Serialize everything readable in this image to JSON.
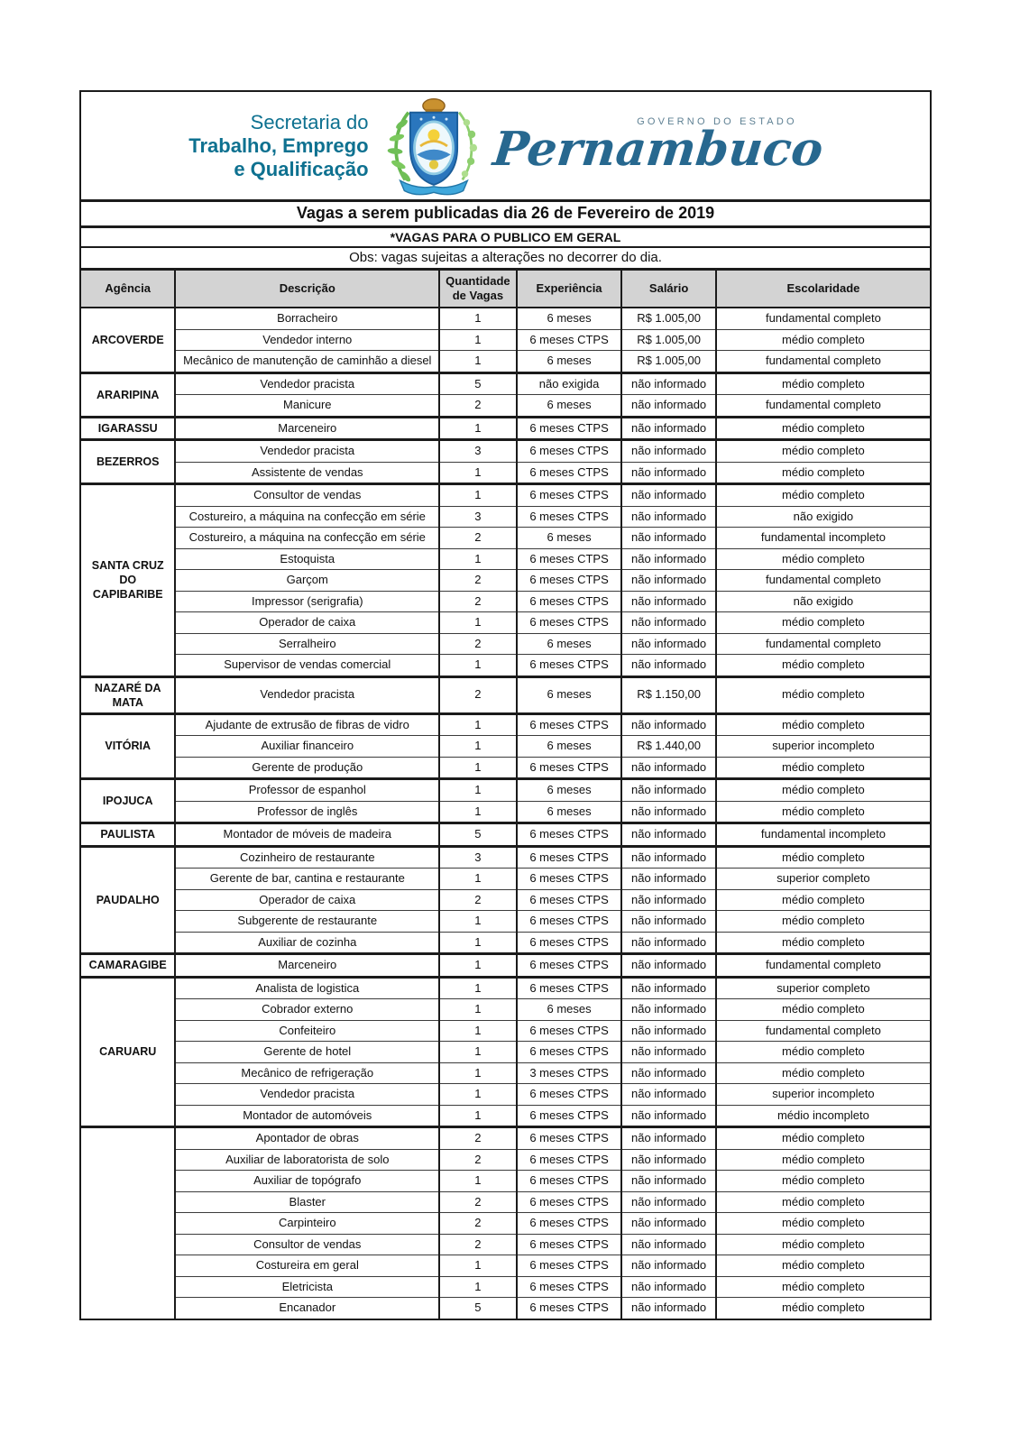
{
  "page": {
    "logo": {
      "secretaria_line1": "Secretaria do",
      "secretaria_line2": "Trabalho, Emprego",
      "secretaria_line3": "e Qualificação",
      "governo_label": "GOVERNO DO ESTADO",
      "estado_name": "Pernambuco",
      "crest_icon": "pernambuco-coat-of-arms"
    },
    "title": "Vagas a serem publicadas dia 26 de Fevereiro de 2019",
    "subtitle": "*VAGAS PARA O PUBLICO EM GERAL",
    "note": "Obs: vagas sujeitas a alterações no decorrer do dia.",
    "colors": {
      "secretaria_teal": "#0e7190",
      "pernambuco_blue": "#27688f",
      "governo_gray_blue": "#5e8093",
      "table_header_bg": "#d3d3d3",
      "border_black": "#1b1b1b"
    }
  },
  "table": {
    "columns": [
      "Agência",
      "Descrição",
      "Quantidade de Vagas",
      "Experiência",
      "Salário",
      "Escolaridade"
    ],
    "groups": [
      {
        "agency": "ARCOVERDE",
        "rows": [
          {
            "descricao": "Borracheiro",
            "vagas": "1",
            "experiencia": "6 meses",
            "salario": "R$ 1.005,00",
            "escolaridade": "fundamental completo"
          },
          {
            "descricao": "Vendedor interno",
            "vagas": "1",
            "experiencia": "6 meses CTPS",
            "salario": "R$ 1.005,00",
            "escolaridade": "médio completo"
          },
          {
            "descricao": "Mecânico de manutenção de caminhão a diesel",
            "vagas": "1",
            "experiencia": "6 meses",
            "salario": "R$ 1.005,00",
            "escolaridade": "fundamental completo"
          }
        ]
      },
      {
        "agency": "ARARIPINA",
        "rows": [
          {
            "descricao": "Vendedor pracista",
            "vagas": "5",
            "experiencia": "não exigida",
            "salario": "não informado",
            "escolaridade": "médio completo"
          },
          {
            "descricao": "Manicure",
            "vagas": "2",
            "experiencia": "6 meses",
            "salario": "não informado",
            "escolaridade": "fundamental completo"
          }
        ]
      },
      {
        "agency": "IGARASSU",
        "rows": [
          {
            "descricao": "Marceneiro",
            "vagas": "1",
            "experiencia": "6 meses CTPS",
            "salario": "não informado",
            "escolaridade": "médio completo"
          }
        ]
      },
      {
        "agency": "BEZERROS",
        "rows": [
          {
            "descricao": "Vendedor pracista",
            "vagas": "3",
            "experiencia": "6 meses CTPS",
            "salario": "não informado",
            "escolaridade": "médio completo"
          },
          {
            "descricao": "Assistente de vendas",
            "vagas": "1",
            "experiencia": "6 meses CTPS",
            "salario": "não informado",
            "escolaridade": "médio completo"
          }
        ]
      },
      {
        "agency": "SANTA CRUZ DO CAPIBARIBE",
        "rows": [
          {
            "descricao": "Consultor de vendas",
            "vagas": "1",
            "experiencia": "6 meses CTPS",
            "salario": "não informado",
            "escolaridade": "médio completo"
          },
          {
            "descricao": "Costureiro, a máquina na confecção em série",
            "vagas": "3",
            "experiencia": "6 meses CTPS",
            "salario": "não informado",
            "escolaridade": "não exigido"
          },
          {
            "descricao": "Costureiro, a máquina na confecção em série",
            "vagas": "2",
            "experiencia": "6 meses",
            "salario": "não informado",
            "escolaridade": "fundamental incompleto"
          },
          {
            "descricao": "Estoquista",
            "vagas": "1",
            "experiencia": "6 meses CTPS",
            "salario": "não informado",
            "escolaridade": "médio completo"
          },
          {
            "descricao": "Garçom",
            "vagas": "2",
            "experiencia": "6 meses CTPS",
            "salario": "não informado",
            "escolaridade": "fundamental completo"
          },
          {
            "descricao": "Impressor (serigrafia)",
            "vagas": "2",
            "experiencia": "6 meses CTPS",
            "salario": "não informado",
            "escolaridade": "não exigido"
          },
          {
            "descricao": "Operador de caixa",
            "vagas": "1",
            "experiencia": "6 meses CTPS",
            "salario": "não informado",
            "escolaridade": "médio completo"
          },
          {
            "descricao": "Serralheiro",
            "vagas": "2",
            "experiencia": "6 meses",
            "salario": "não informado",
            "escolaridade": "fundamental completo"
          },
          {
            "descricao": "Supervisor de vendas comercial",
            "vagas": "1",
            "experiencia": "6 meses CTPS",
            "salario": "não informado",
            "escolaridade": "médio completo"
          }
        ]
      },
      {
        "agency": "NAZARÉ DA MATA",
        "rows": [
          {
            "descricao": "Vendedor pracista",
            "vagas": "2",
            "experiencia": "6 meses",
            "salario": "R$ 1.150,00",
            "escolaridade": "médio completo"
          }
        ]
      },
      {
        "agency": "VITÓRIA",
        "rows": [
          {
            "descricao": "Ajudante de extrusão de fibras de vidro",
            "vagas": "1",
            "experiencia": "6 meses CTPS",
            "salario": "não informado",
            "escolaridade": "médio completo"
          },
          {
            "descricao": "Auxiliar financeiro",
            "vagas": "1",
            "experiencia": "6 meses",
            "salario": "R$ 1.440,00",
            "escolaridade": "superior incompleto"
          },
          {
            "descricao": "Gerente de produção",
            "vagas": "1",
            "experiencia": "6 meses CTPS",
            "salario": "não informado",
            "escolaridade": "médio completo"
          }
        ]
      },
      {
        "agency": "IPOJUCA",
        "rows": [
          {
            "descricao": "Professor de espanhol",
            "vagas": "1",
            "experiencia": "6 meses",
            "salario": "não informado",
            "escolaridade": "médio completo"
          },
          {
            "descricao": "Professor de inglês",
            "vagas": "1",
            "experiencia": "6 meses",
            "salario": "não informado",
            "escolaridade": "médio completo"
          }
        ]
      },
      {
        "agency": "PAULISTA",
        "rows": [
          {
            "descricao": "Montador de móveis de madeira",
            "vagas": "5",
            "experiencia": "6 meses CTPS",
            "salario": "não informado",
            "escolaridade": "fundamental incompleto"
          }
        ]
      },
      {
        "agency": "PAUDALHO",
        "rows": [
          {
            "descricao": "Cozinheiro de restaurante",
            "vagas": "3",
            "experiencia": "6 meses CTPS",
            "salario": "não informado",
            "escolaridade": "médio completo"
          },
          {
            "descricao": "Gerente de bar, cantina e restaurante",
            "vagas": "1",
            "experiencia": "6 meses CTPS",
            "salario": "não informado",
            "escolaridade": "superior completo"
          },
          {
            "descricao": "Operador de caixa",
            "vagas": "2",
            "experiencia": "6 meses CTPS",
            "salario": "não informado",
            "escolaridade": "médio completo"
          },
          {
            "descricao": "Subgerente de restaurante",
            "vagas": "1",
            "experiencia": "6 meses CTPS",
            "salario": "não informado",
            "escolaridade": "médio completo"
          },
          {
            "descricao": "Auxiliar de cozinha",
            "vagas": "1",
            "experiencia": "6 meses CTPS",
            "salario": "não informado",
            "escolaridade": "médio completo"
          }
        ]
      },
      {
        "agency": "CAMARAGIBE",
        "rows": [
          {
            "descricao": "Marceneiro",
            "vagas": "1",
            "experiencia": "6 meses CTPS",
            "salario": "não informado",
            "escolaridade": "fundamental completo"
          }
        ]
      },
      {
        "agency": "CARUARU",
        "rows": [
          {
            "descricao": "Analista de logistica",
            "vagas": "1",
            "experiencia": "6 meses CTPS",
            "salario": "não informado",
            "escolaridade": "superior completo"
          },
          {
            "descricao": "Cobrador externo",
            "vagas": "1",
            "experiencia": "6 meses",
            "salario": "não informado",
            "escolaridade": "médio completo"
          },
          {
            "descricao": "Confeiteiro",
            "vagas": "1",
            "experiencia": "6 meses CTPS",
            "salario": "não informado",
            "escolaridade": "fundamental completo"
          },
          {
            "descricao": "Gerente de hotel",
            "vagas": "1",
            "experiencia": "6 meses CTPS",
            "salario": "não informado",
            "escolaridade": "médio completo"
          },
          {
            "descricao": "Mecânico de refrigeração",
            "vagas": "1",
            "experiencia": "3 meses CTPS",
            "salario": "não informado",
            "escolaridade": "médio completo"
          },
          {
            "descricao": "Vendedor pracista",
            "vagas": "1",
            "experiencia": "6 meses CTPS",
            "salario": "não informado",
            "escolaridade": "superior incompleto"
          },
          {
            "descricao": "Montador de automóveis",
            "vagas": "1",
            "experiencia": "6 meses CTPS",
            "salario": "não informado",
            "escolaridade": "médio incompleto"
          }
        ]
      },
      {
        "agency": "",
        "rows": [
          {
            "descricao": "Apontador de obras",
            "vagas": "2",
            "experiencia": "6 meses CTPS",
            "salario": "não informado",
            "escolaridade": "médio completo"
          },
          {
            "descricao": "Auxiliar de laboratorista de solo",
            "vagas": "2",
            "experiencia": "6 meses CTPS",
            "salario": "não informado",
            "escolaridade": "médio completo"
          },
          {
            "descricao": "Auxiliar de topógrafo",
            "vagas": "1",
            "experiencia": "6 meses CTPS",
            "salario": "não informado",
            "escolaridade": "médio completo"
          },
          {
            "descricao": "Blaster",
            "vagas": "2",
            "experiencia": "6 meses CTPS",
            "salario": "não informado",
            "escolaridade": "médio completo"
          },
          {
            "descricao": "Carpinteiro",
            "vagas": "2",
            "experiencia": "6 meses CTPS",
            "salario": "não informado",
            "escolaridade": "médio completo"
          },
          {
            "descricao": "Consultor de vendas",
            "vagas": "2",
            "experiencia": "6 meses CTPS",
            "salario": "não informado",
            "escolaridade": "médio completo"
          },
          {
            "descricao": "Costureira em geral",
            "vagas": "1",
            "experiencia": "6 meses CTPS",
            "salario": "não informado",
            "escolaridade": "médio completo"
          },
          {
            "descricao": "Eletricista",
            "vagas": "1",
            "experiencia": "6 meses CTPS",
            "salario": "não informado",
            "escolaridade": "médio completo"
          },
          {
            "descricao": "Encanador",
            "vagas": "5",
            "experiencia": "6 meses CTPS",
            "salario": "não informado",
            "escolaridade": "médio completo"
          }
        ]
      }
    ]
  }
}
